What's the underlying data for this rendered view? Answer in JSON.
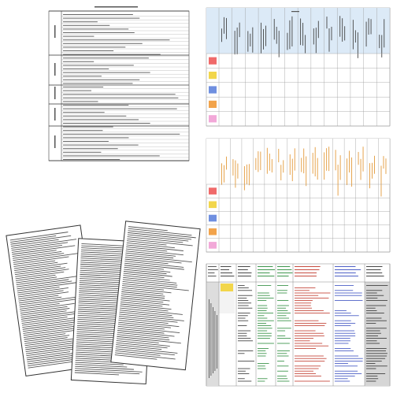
{
  "grid_top": {
    "row_colors": [
      "#f06a6a",
      "#f2d64b",
      "#6f8fe0",
      "#f2a34b",
      "#f2a8d8"
    ]
  },
  "grid_middle": {
    "row_colors": [
      "#f06a6a",
      "#f2d64b",
      "#6f8fe0",
      "#f2a34b",
      "#f2a8d8"
    ]
  }
}
